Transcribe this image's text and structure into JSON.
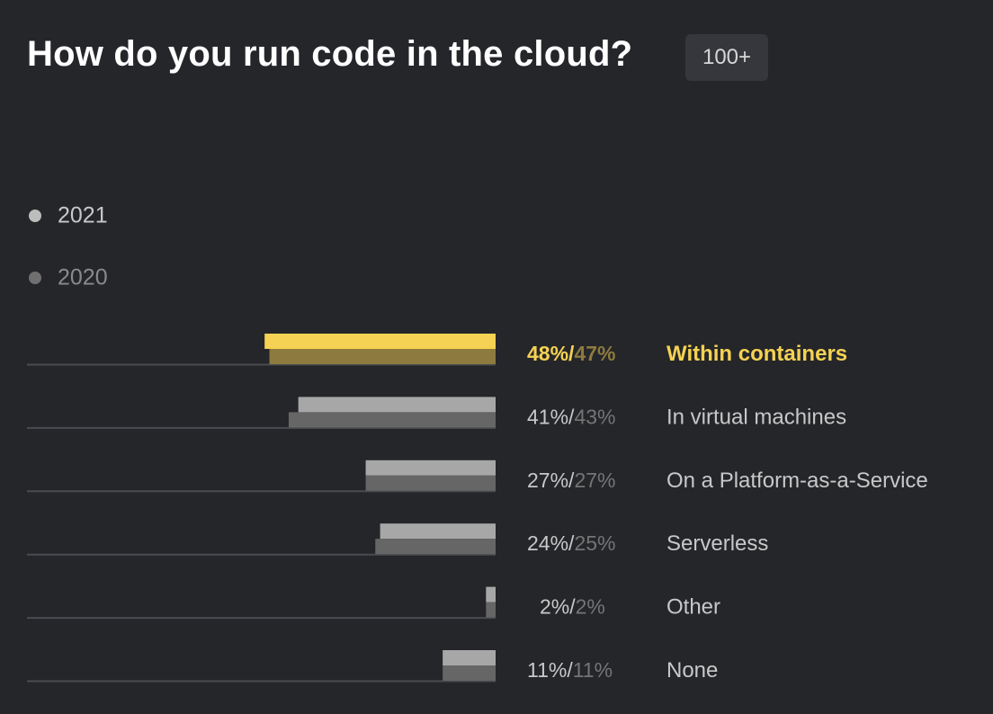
{
  "title": "How do you run code in the cloud?",
  "badge": "100+",
  "legend": {
    "series_a": "2021",
    "series_b": "2020"
  },
  "colors": {
    "highlight_a": "#f5d253",
    "highlight_b": "#8d7a3e",
    "series_a": "#a7a7a7",
    "series_b": "#666666",
    "pct_a": "#c8c8c8",
    "pct_b": "#757575",
    "label": "#c8c8c8",
    "baseline": "#4a4b50"
  },
  "chart_data": {
    "type": "bar",
    "orientation": "horizontal",
    "categories": [
      "Within containers",
      "In virtual machines",
      "On a Platform-as-a-Service",
      "Serverless",
      "Other",
      "None"
    ],
    "series": [
      {
        "name": "2021",
        "values": [
          48,
          41,
          27,
          24,
          2,
          11
        ]
      },
      {
        "name": "2020",
        "values": [
          47,
          43,
          27,
          25,
          2,
          11
        ]
      }
    ],
    "highlighted": "Within containers",
    "value_format": "percent",
    "xlim": [
      0,
      100
    ],
    "legend_position": "top-left",
    "grid": false
  }
}
